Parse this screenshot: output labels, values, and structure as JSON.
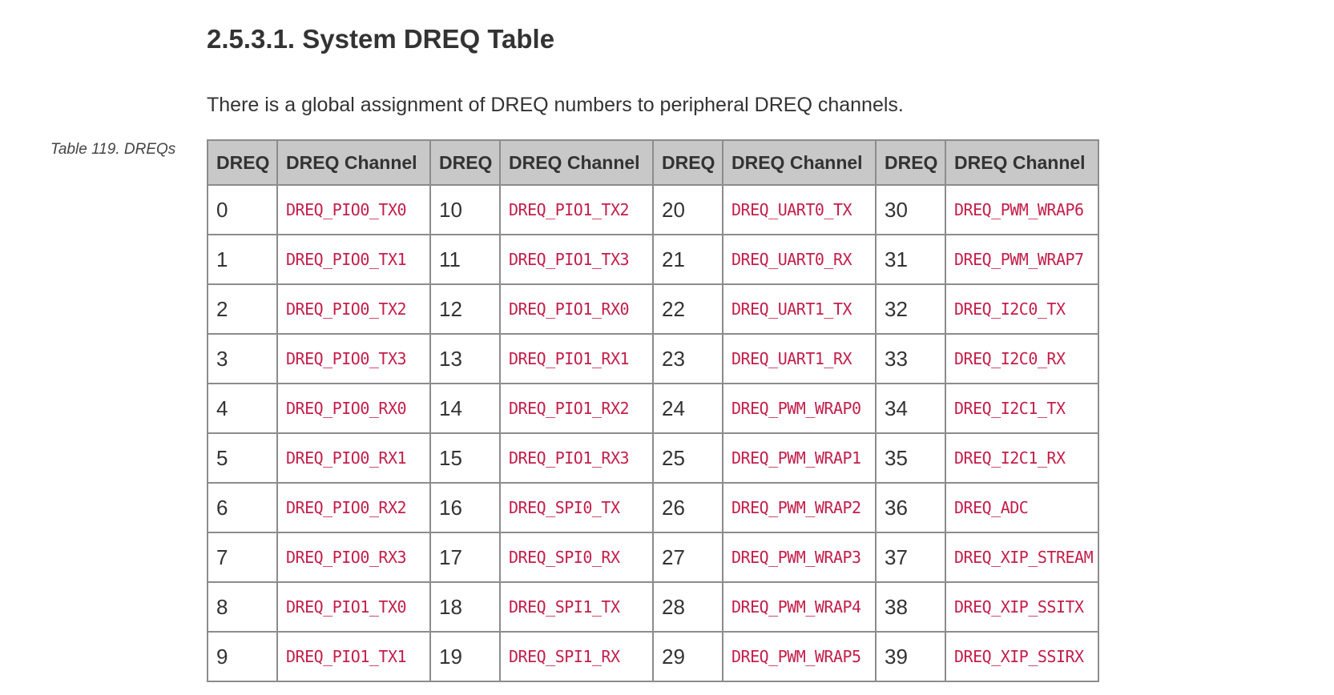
{
  "section": {
    "heading": "2.5.3.1. System DREQ Table",
    "intro": "There is a global assignment of DREQ numbers to peripheral DREQ channels."
  },
  "table": {
    "caption": "Table 119. DREQs",
    "headers": [
      "DREQ",
      "DREQ Channel",
      "DREQ",
      "DREQ Channel",
      "DREQ",
      "DREQ Channel",
      "DREQ",
      "DREQ Channel"
    ],
    "rows": [
      [
        "0",
        "DREQ_PIO0_TX0",
        "10",
        "DREQ_PIO1_TX2",
        "20",
        "DREQ_UART0_TX",
        "30",
        "DREQ_PWM_WRAP6"
      ],
      [
        "1",
        "DREQ_PIO0_TX1",
        "11",
        "DREQ_PIO1_TX3",
        "21",
        "DREQ_UART0_RX",
        "31",
        "DREQ_PWM_WRAP7"
      ],
      [
        "2",
        "DREQ_PIO0_TX2",
        "12",
        "DREQ_PIO1_RX0",
        "22",
        "DREQ_UART1_TX",
        "32",
        "DREQ_I2C0_TX"
      ],
      [
        "3",
        "DREQ_PIO0_TX3",
        "13",
        "DREQ_PIO1_RX1",
        "23",
        "DREQ_UART1_RX",
        "33",
        "DREQ_I2C0_RX"
      ],
      [
        "4",
        "DREQ_PIO0_RX0",
        "14",
        "DREQ_PIO1_RX2",
        "24",
        "DREQ_PWM_WRAP0",
        "34",
        "DREQ_I2C1_TX"
      ],
      [
        "5",
        "DREQ_PIO0_RX1",
        "15",
        "DREQ_PIO1_RX3",
        "25",
        "DREQ_PWM_WRAP1",
        "35",
        "DREQ_I2C1_RX"
      ],
      [
        "6",
        "DREQ_PIO0_RX2",
        "16",
        "DREQ_SPI0_TX",
        "26",
        "DREQ_PWM_WRAP2",
        "36",
        "DREQ_ADC"
      ],
      [
        "7",
        "DREQ_PIO0_RX3",
        "17",
        "DREQ_SPI0_RX",
        "27",
        "DREQ_PWM_WRAP3",
        "37",
        "DREQ_XIP_STREAM"
      ],
      [
        "8",
        "DREQ_PIO1_TX0",
        "18",
        "DREQ_SPI1_TX",
        "28",
        "DREQ_PWM_WRAP4",
        "38",
        "DREQ_XIP_SSITX"
      ],
      [
        "9",
        "DREQ_PIO1_TX1",
        "19",
        "DREQ_SPI1_RX",
        "29",
        "DREQ_PWM_WRAP5",
        "39",
        "DREQ_XIP_SSIRX"
      ]
    ]
  },
  "colors": {
    "header_bg": "#c8c8c8",
    "border": "#8c8c8c",
    "code_text": "#c31e4a",
    "body_text": "#333333"
  }
}
